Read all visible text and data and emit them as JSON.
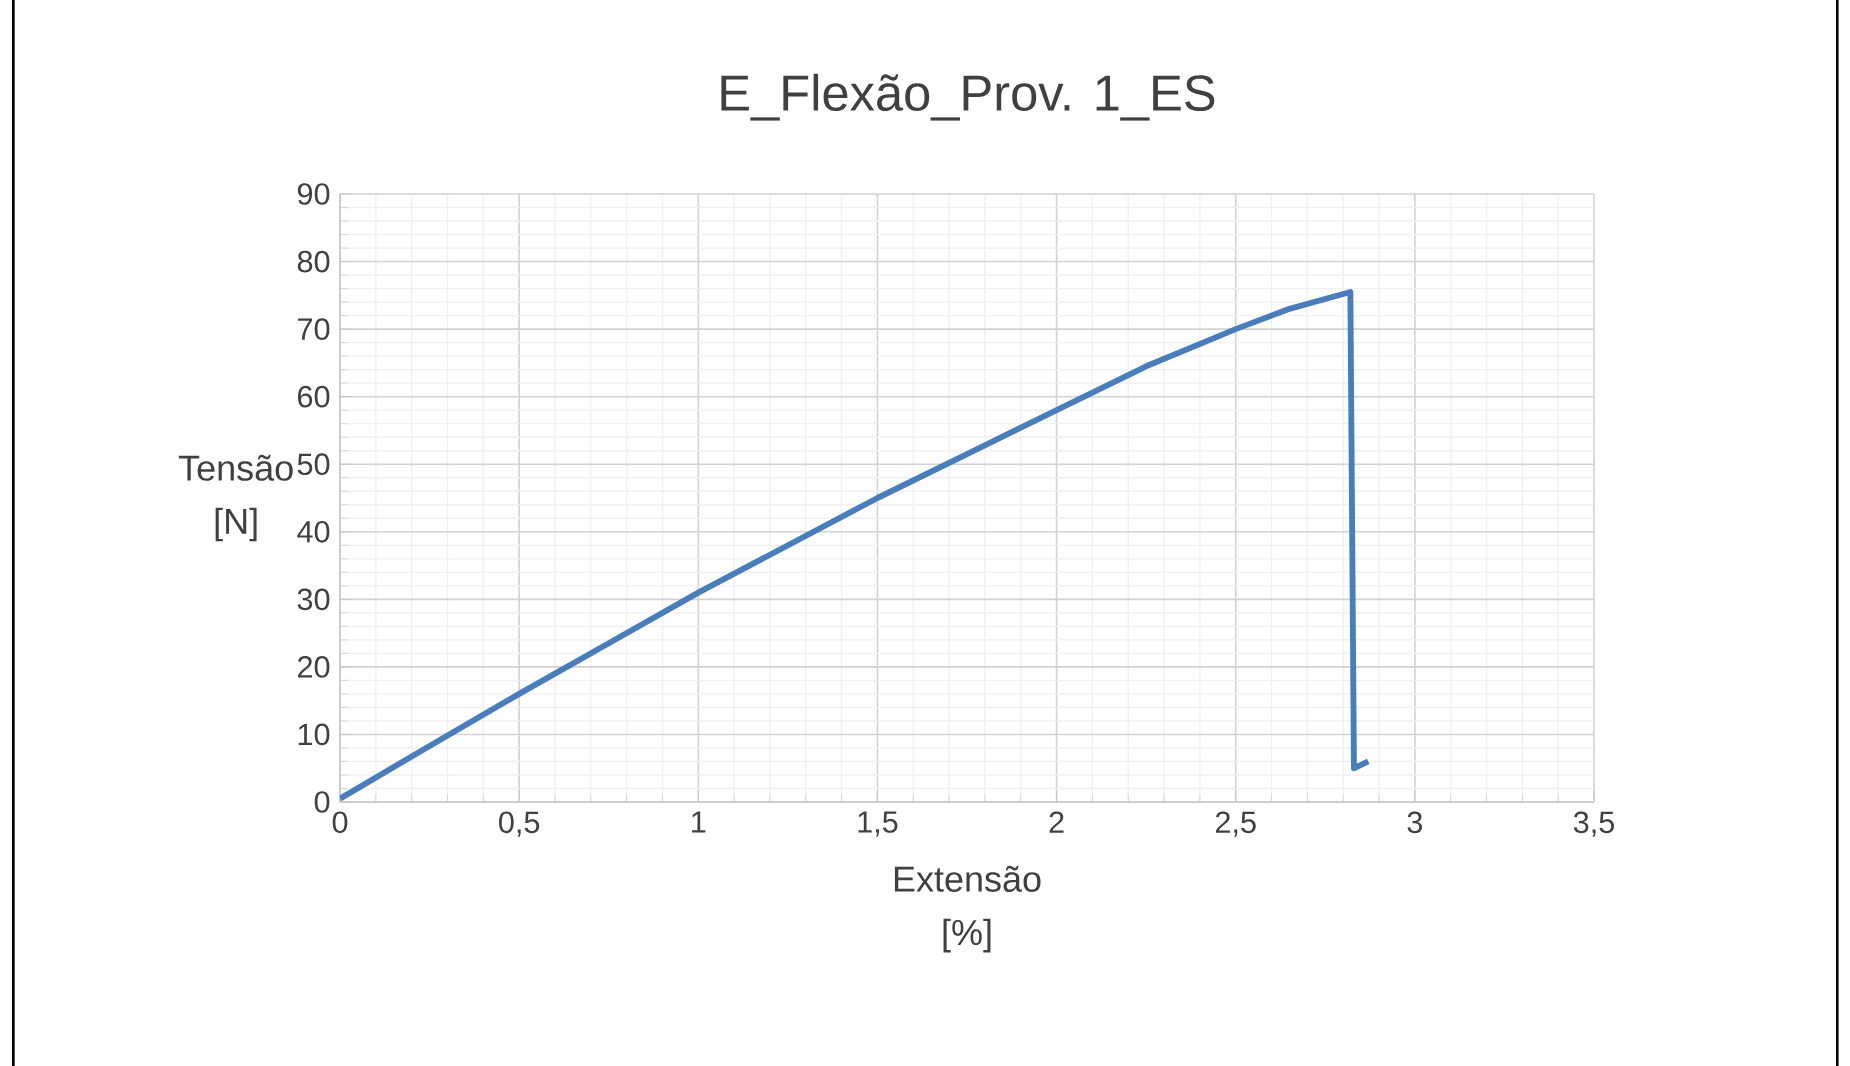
{
  "chart_data": {
    "type": "line",
    "title": "E_Flexão_Prov. 1_ES",
    "xlabel": "Extensão\n[%]",
    "ylabel": "Tensão\n[N]",
    "x": [
      0,
      0.25,
      0.5,
      0.75,
      1,
      1.25,
      1.5,
      1.75,
      2,
      2.25,
      2.5,
      2.65,
      2.82,
      2.83,
      2.87
    ],
    "series": [
      {
        "color": "#4a7ebb",
        "values": [
          0.5,
          8.3,
          16,
          23.5,
          31,
          38,
          45,
          51.5,
          58,
          64.5,
          70,
          73,
          75.5,
          5,
          6
        ]
      }
    ],
    "xlim": [
      0,
      3.5
    ],
    "xticks": [
      {
        "value": 0,
        "label": "0"
      },
      {
        "value": 0.5,
        "label": "0,5"
      },
      {
        "value": 1,
        "label": "1"
      },
      {
        "value": 1.5,
        "label": "1,5"
      },
      {
        "value": 2,
        "label": "2"
      },
      {
        "value": 2.5,
        "label": "2,5"
      },
      {
        "value": 3,
        "label": "3"
      },
      {
        "value": 3.5,
        "label": "3,5"
      }
    ],
    "ylim": [
      0,
      90
    ],
    "yticks": [
      0,
      10,
      20,
      30,
      40,
      50,
      60,
      70,
      80,
      90
    ],
    "grid": true,
    "marker": "none",
    "line_style": "solid"
  }
}
